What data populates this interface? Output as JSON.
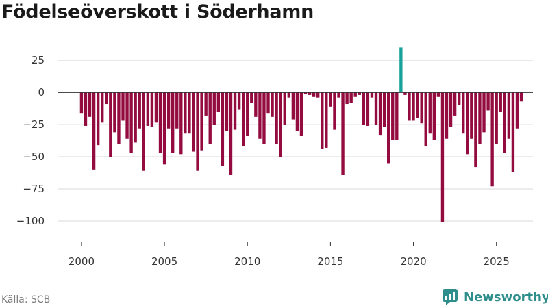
{
  "chart_data": {
    "type": "bar",
    "title": "Födelseöverskott i Söderhamn",
    "xlabel": "",
    "ylabel": "",
    "ylim": [
      -108,
      40
    ],
    "xlim": [
      1998.6,
      2027.2
    ],
    "x_ticks": [
      "2000",
      "2005",
      "2010",
      "2015",
      "2020",
      "2025"
    ],
    "y_ticks": [
      "25",
      "0",
      "−25",
      "−50",
      "−75",
      "−100"
    ],
    "grid": true,
    "colors": {
      "negative": "#940b3f",
      "positive": "#17a39b",
      "zero_line": "#333333",
      "grid": "#d9d9d9"
    },
    "series": [
      {
        "start": 2000.0,
        "step": 0.25,
        "values": [
          -16,
          -26,
          -19,
          -60,
          -41,
          -23,
          -9,
          -50,
          -31,
          -40,
          -22,
          -36,
          -47,
          -39,
          -28,
          -61,
          -26,
          -27,
          -23,
          -47,
          -56,
          -28,
          -47,
          -28,
          -48,
          -32,
          -32,
          -46,
          -61,
          -45,
          -18,
          -40,
          -25,
          -15,
          -57,
          -30,
          -64,
          -29,
          -13,
          -42,
          -34,
          -8,
          -19,
          -36,
          -40,
          -16,
          -19,
          -40,
          -50,
          -25,
          -4,
          -21,
          -30,
          -34,
          -1,
          -2,
          -3,
          -4,
          -44,
          -43,
          -11,
          -29,
          -4,
          -64,
          -9,
          -8,
          -3,
          -2,
          -25,
          -26,
          -4,
          -25,
          -33,
          -27,
          -55,
          -37,
          -37,
          35,
          -2,
          -22,
          -22,
          -20,
          -24,
          -42,
          -32,
          -37,
          -3,
          -101,
          -36,
          -27,
          -18,
          -10,
          -32,
          -48,
          -36,
          -58,
          -40,
          -31,
          -14,
          -73,
          -40,
          -15,
          -47,
          -36,
          -62,
          -28,
          -7
        ]
      }
    ]
  },
  "footer": {
    "source": "Källa: SCB",
    "brand": "Newsworthy"
  }
}
